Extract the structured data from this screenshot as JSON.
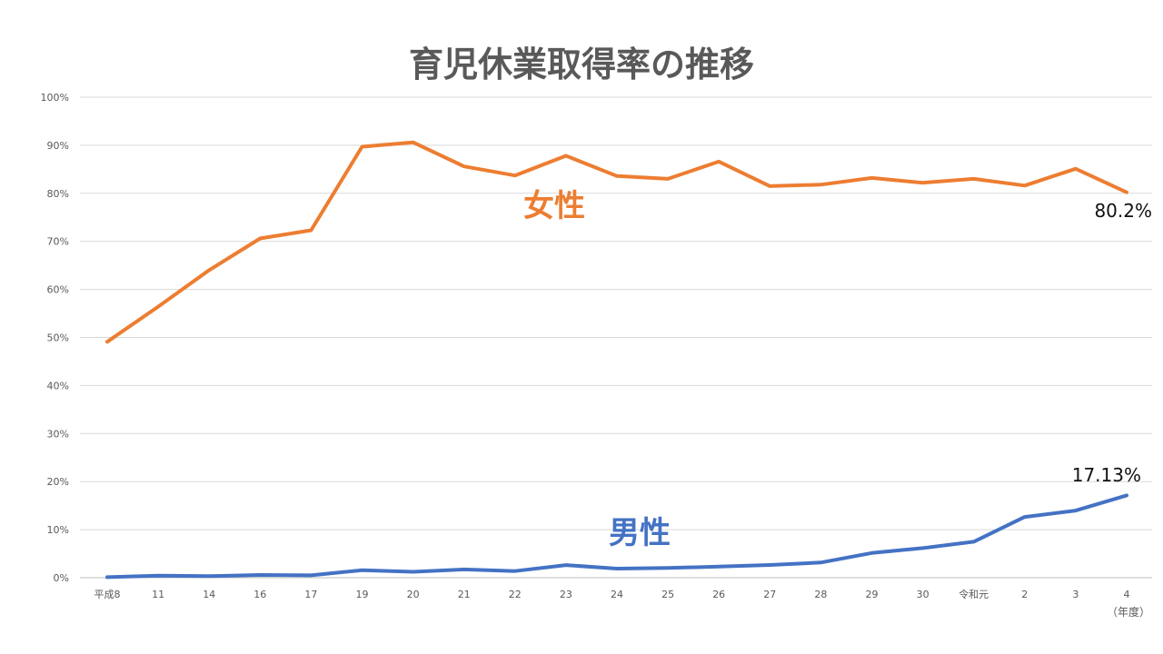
{
  "chart_data": {
    "type": "line",
    "title": "育児休業取得率の推移",
    "xlabel": "",
    "ylabel": "",
    "x_unit_label": "（年度）",
    "categories": [
      "平成8",
      "11",
      "14",
      "16",
      "17",
      "19",
      "20",
      "21",
      "22",
      "23",
      "24",
      "25",
      "26",
      "27",
      "28",
      "29",
      "30",
      "令和元",
      "2",
      "3",
      "4"
    ],
    "yticks": [
      "0%",
      "10%",
      "20%",
      "30%",
      "40%",
      "50%",
      "60%",
      "70%",
      "80%",
      "90%",
      "100%"
    ],
    "ylim": [
      0,
      100
    ],
    "grid": true,
    "legend": "none",
    "series": [
      {
        "name": "女性",
        "color": "#ED7D31",
        "values": [
          49.1,
          56.4,
          64.0,
          70.6,
          72.3,
          89.7,
          90.6,
          85.6,
          83.7,
          87.8,
          83.6,
          83.0,
          86.6,
          81.5,
          81.8,
          83.2,
          82.2,
          83.0,
          81.6,
          85.1,
          80.2
        ],
        "end_label": "80.2%"
      },
      {
        "name": "男性",
        "color": "#4472C4",
        "values": [
          0.12,
          0.42,
          0.33,
          0.56,
          0.5,
          1.56,
          1.23,
          1.72,
          1.38,
          2.63,
          1.89,
          2.03,
          2.3,
          2.65,
          3.16,
          5.14,
          6.16,
          7.48,
          12.65,
          13.97,
          17.13
        ],
        "end_label": "17.13%"
      }
    ]
  }
}
